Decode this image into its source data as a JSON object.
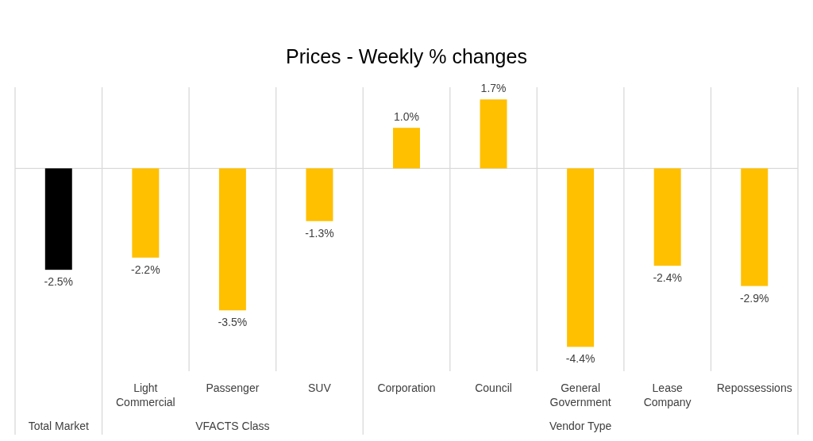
{
  "chart_data": {
    "type": "bar",
    "title": "Prices - Weekly % changes",
    "categories": [
      null,
      "Light Commercial",
      "Passenger",
      "SUV",
      "Corporation",
      "Council",
      "General Government",
      "Lease Company",
      "Repossessions"
    ],
    "values": [
      -2.5,
      -2.2,
      -3.5,
      -1.3,
      1.0,
      1.7,
      -4.4,
      -2.4,
      -2.9
    ],
    "value_labels": [
      "-2.5%",
      "-2.2%",
      "-3.5%",
      "-1.3%",
      "1.0%",
      "1.7%",
      "-4.4%",
      "-2.4%",
      "-2.9%"
    ],
    "colors": [
      "#000000",
      "#ffc000",
      "#ffc000",
      "#ffc000",
      "#ffc000",
      "#ffc000",
      "#ffc000",
      "#ffc000",
      "#ffc000"
    ],
    "ylim": [
      -5,
      2
    ],
    "grid": "x",
    "annotations": [
      "Total Market",
      "VFACTS Class",
      "Vendor Type"
    ]
  }
}
